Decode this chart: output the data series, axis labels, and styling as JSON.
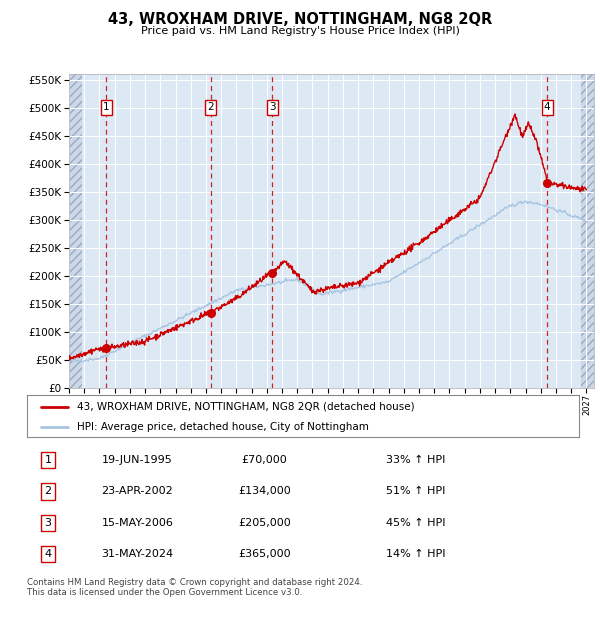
{
  "title": "43, WROXHAM DRIVE, NOTTINGHAM, NG8 2QR",
  "subtitle": "Price paid vs. HM Land Registry's House Price Index (HPI)",
  "ytick_values": [
    0,
    50000,
    100000,
    150000,
    200000,
    250000,
    300000,
    350000,
    400000,
    450000,
    500000,
    550000
  ],
  "xlim_start": 1993.0,
  "xlim_end": 2027.5,
  "ylim_min": 0,
  "ylim_max": 560000,
  "sales": [
    {
      "label": 1,
      "date": 1995.46,
      "price": 70000
    },
    {
      "label": 2,
      "date": 2002.31,
      "price": 134000
    },
    {
      "label": 3,
      "date": 2006.37,
      "price": 205000
    },
    {
      "label": 4,
      "date": 2024.42,
      "price": 365000
    }
  ],
  "legend_line1": "43, WROXHAM DRIVE, NOTTINGHAM, NG8 2QR (detached house)",
  "legend_line2": "HPI: Average price, detached house, City of Nottingham",
  "table_rows": [
    {
      "num": 1,
      "date": "19-JUN-1995",
      "price": "£70,000",
      "pct": "33% ↑ HPI"
    },
    {
      "num": 2,
      "date": "23-APR-2002",
      "price": "£134,000",
      "pct": "51% ↑ HPI"
    },
    {
      "num": 3,
      "date": "15-MAY-2006",
      "price": "£205,000",
      "pct": "45% ↑ HPI"
    },
    {
      "num": 4,
      "date": "31-MAY-2024",
      "price": "£365,000",
      "pct": "14% ↑ HPI"
    }
  ],
  "footer": "Contains HM Land Registry data © Crown copyright and database right 2024.\nThis data is licensed under the Open Government Licence v3.0.",
  "hpi_color": "#a8c4e0",
  "price_color": "#cc0000",
  "plot_bg": "#dce9f5",
  "grid_color": "#ffffff",
  "xticks": [
    1993,
    1994,
    1995,
    1996,
    1997,
    1998,
    1999,
    2000,
    2001,
    2002,
    2003,
    2004,
    2005,
    2006,
    2007,
    2008,
    2009,
    2010,
    2011,
    2012,
    2013,
    2014,
    2015,
    2016,
    2017,
    2018,
    2019,
    2020,
    2021,
    2022,
    2023,
    2024,
    2025,
    2026,
    2027
  ]
}
